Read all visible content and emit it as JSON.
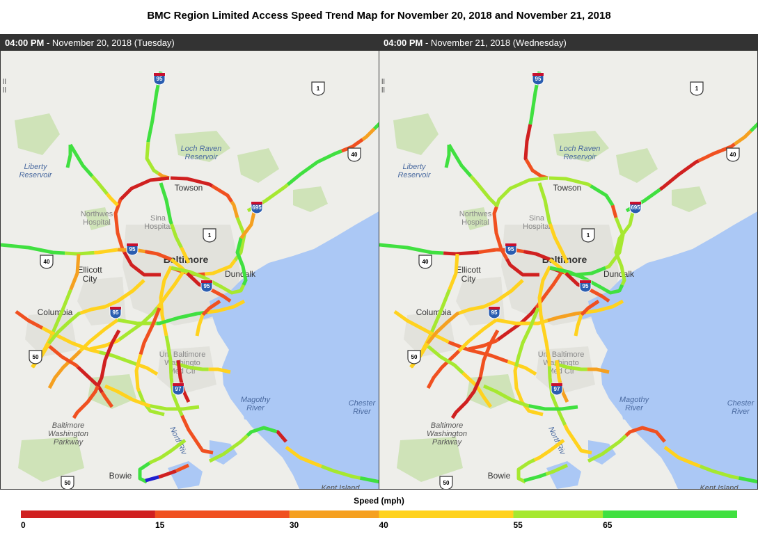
{
  "title": "BMC Region Limited Access Speed Trend Map for November 20, 2018 and November 21, 2018",
  "panels": [
    {
      "time": "04:00 PM",
      "date_label": " - November 20, 2018 (Tuesday)"
    },
    {
      "time": "04:00 PM",
      "date_label": " - November 21, 2018 (Wednesday)"
    }
  ],
  "map_labels": {
    "liberty": [
      "Liberty",
      "Reservoir"
    ],
    "loch_raven": [
      "Loch Raven",
      "Reservoir"
    ],
    "towson": "Towson",
    "northwest": [
      "Northwes",
      "Hospital"
    ],
    "sinai": [
      "Sina",
      "Hospital"
    ],
    "baltimore": "Baltimore",
    "ellicott": [
      "Ellicott",
      "City"
    ],
    "dundalk": "Dundalk",
    "columbia": "Columbia",
    "umbaltimore": [
      "Um Baltimore",
      "Washingto",
      "Med Ctr"
    ],
    "magothy": [
      "Magothy",
      "River"
    ],
    "chester": [
      "Chester",
      "River"
    ],
    "bwp": [
      "Baltimore",
      "Washington",
      "Parkway"
    ],
    "northriver": "NorthRiv",
    "bowie": "Bowie",
    "kent": "Kent Island",
    "left_edge": [
      "ll",
      "ll"
    ]
  },
  "shields": {
    "us1": "1",
    "us40": "40",
    "us50": "50",
    "i95": "95",
    "i695": "695",
    "i97": "97"
  },
  "colors": {
    "water": "#abc8f5",
    "land": "#eeeeea",
    "park": "#cfe3b8",
    "urban": "#e2e2dc",
    "speed_0_15": "#d02020",
    "speed_15_30": "#f05020",
    "speed_30_40": "#f5a020",
    "speed_40_55": "#ffd21e",
    "speed_55_65": "#a6e830",
    "speed_65_plus": "#40e040",
    "speed_unknown": "#2020d0"
  },
  "legend": {
    "title": "Speed (mph)",
    "bins": [
      {
        "from": 0,
        "to": 15,
        "color": "#d02020"
      },
      {
        "from": 15,
        "to": 30,
        "color": "#f05020"
      },
      {
        "from": 30,
        "to": 40,
        "color": "#f5a020"
      },
      {
        "from": 40,
        "to": 55,
        "color": "#ffd21e"
      },
      {
        "from": 55,
        "to": 65,
        "color": "#a6e830"
      },
      {
        "from": 65,
        "to": 80,
        "color": "#40e040"
      }
    ],
    "ticks": [
      "0",
      "15",
      "30",
      "40",
      "55",
      "65"
    ]
  }
}
